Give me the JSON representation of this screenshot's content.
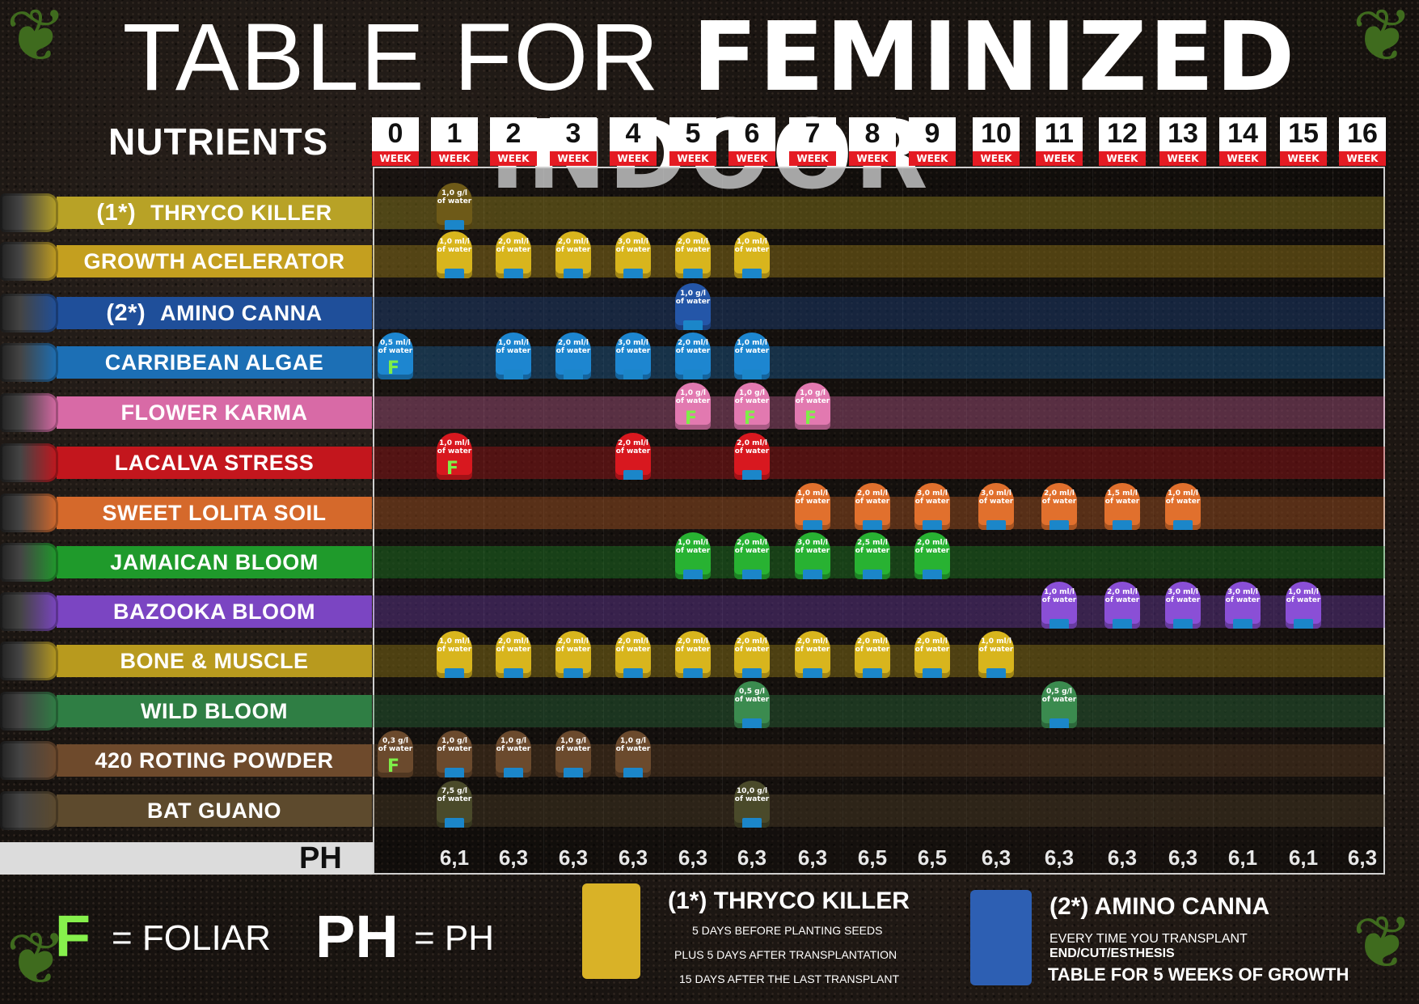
{
  "title": {
    "part1": "TABLE FOR",
    "part2": "FEMINIZED INDOOR"
  },
  "nutrients_heading": "NUTRIENTS",
  "week_label": "WEEK",
  "weeks": [
    "0",
    "1",
    "2",
    "3",
    "4",
    "5",
    "6",
    "7",
    "8",
    "9",
    "10",
    "11",
    "12",
    "13",
    "14",
    "15",
    "16"
  ],
  "rows": [
    {
      "prefix": "(1*)",
      "name": "THRYCO KILLER",
      "color": "#b8a226",
      "doses": [
        {
          "w": 1,
          "t": "1,0 g/l of water",
          "c": "#6e5a18",
          "f": false
        }
      ]
    },
    {
      "prefix": "",
      "name": "GROWTH ACELERATOR",
      "color": "#c49f1f",
      "doses": [
        {
          "w": 1,
          "t": "1,0 ml/l of water",
          "c": "#d8b51d",
          "f": false
        },
        {
          "w": 2,
          "t": "2,0 ml/l of water",
          "c": "#d8b51d",
          "f": false
        },
        {
          "w": 3,
          "t": "2,0 ml/l of water",
          "c": "#d8b51d",
          "f": false
        },
        {
          "w": 4,
          "t": "3,0 ml/l of water",
          "c": "#d8b51d",
          "f": false
        },
        {
          "w": 5,
          "t": "2,0 ml/l of water",
          "c": "#d8b51d",
          "f": false
        },
        {
          "w": 6,
          "t": "1,0 ml/l of water",
          "c": "#d8b51d",
          "f": false
        }
      ]
    },
    {
      "prefix": "(2*)",
      "name": "AMINO CANNA",
      "color": "#1f4f9a",
      "doses": [
        {
          "w": 5,
          "t": "1,0 g/l of water",
          "c": "#2456a8",
          "f": false
        }
      ]
    },
    {
      "prefix": "",
      "name": "CARRIBEAN ALGAE",
      "color": "#1c6fb5",
      "doses": [
        {
          "w": 0,
          "t": "0,5 ml/l of water",
          "c": "#1d86d0",
          "f": true
        },
        {
          "w": 2,
          "t": "1,0 ml/l of water",
          "c": "#1d86d0",
          "f": false
        },
        {
          "w": 3,
          "t": "2,0 ml/l of water",
          "c": "#1d86d0",
          "f": false
        },
        {
          "w": 4,
          "t": "3,0 ml/l of water",
          "c": "#1d86d0",
          "f": false
        },
        {
          "w": 5,
          "t": "2,0 ml/l of water",
          "c": "#1d86d0",
          "f": false
        },
        {
          "w": 6,
          "t": "1,0 ml/l of water",
          "c": "#1d86d0",
          "f": false
        }
      ]
    },
    {
      "prefix": "",
      "name": "FLOWER KARMA",
      "color": "#d86aa6",
      "doses": [
        {
          "w": 5,
          "t": "1,0 g/l of water",
          "c": "#e279b0",
          "f": true
        },
        {
          "w": 6,
          "t": "1,0 g/l of water",
          "c": "#e279b0",
          "f": true
        },
        {
          "w": 7,
          "t": "1,0 g/l of water",
          "c": "#e279b0",
          "f": true
        }
      ]
    },
    {
      "prefix": "",
      "name": "LACALVA STRESS",
      "color": "#c3161d",
      "doses": [
        {
          "w": 1,
          "t": "1,0 ml/l of water",
          "c": "#d8181f",
          "f": true
        },
        {
          "w": 4,
          "t": "2,0 ml/l of water",
          "c": "#d8181f",
          "f": false
        },
        {
          "w": 6,
          "t": "2,0 ml/l of water",
          "c": "#d8181f",
          "f": false
        }
      ]
    },
    {
      "prefix": "",
      "name": "SWEET LOLITA SOIL",
      "color": "#d5692b",
      "doses": [
        {
          "w": 7,
          "t": "1,0 ml/l of water",
          "c": "#e1702d",
          "f": false
        },
        {
          "w": 8,
          "t": "2,0 ml/l of water",
          "c": "#e1702d",
          "f": false
        },
        {
          "w": 9,
          "t": "3,0 ml/l of water",
          "c": "#e1702d",
          "f": false
        },
        {
          "w": 10,
          "t": "3,0 ml/l of water",
          "c": "#e1702d",
          "f": false
        },
        {
          "w": 11,
          "t": "2,0 ml/l of water",
          "c": "#e1702d",
          "f": false
        },
        {
          "w": 12,
          "t": "1,5 ml/l of water",
          "c": "#e1702d",
          "f": false
        },
        {
          "w": 13,
          "t": "1,0 ml/l of water",
          "c": "#e1702d",
          "f": false
        }
      ]
    },
    {
      "prefix": "",
      "name": "JAMAICAN BLOOM",
      "color": "#1f9a2b",
      "doses": [
        {
          "w": 5,
          "t": "1,0 ml/l of water",
          "c": "#28b232",
          "f": false
        },
        {
          "w": 6,
          "t": "2,0 ml/l of water",
          "c": "#28b232",
          "f": false
        },
        {
          "w": 7,
          "t": "3,0 ml/l of water",
          "c": "#28b232",
          "f": false
        },
        {
          "w": 8,
          "t": "2,5 ml/l of water",
          "c": "#28b232",
          "f": false
        },
        {
          "w": 9,
          "t": "2,0 ml/l of water",
          "c": "#28b232",
          "f": false
        }
      ]
    },
    {
      "prefix": "",
      "name": "BAZOOKA BLOOM",
      "color": "#7b45c2",
      "doses": [
        {
          "w": 11,
          "t": "1,0 ml/l of water",
          "c": "#8a4fd6",
          "f": false
        },
        {
          "w": 12,
          "t": "2,0 ml/l of water",
          "c": "#8a4fd6",
          "f": false
        },
        {
          "w": 13,
          "t": "3,0 ml/l of water",
          "c": "#8a4fd6",
          "f": false
        },
        {
          "w": 14,
          "t": "3,0 ml/l of water",
          "c": "#8a4fd6",
          "f": false
        },
        {
          "w": 15,
          "t": "1,0 ml/l of water",
          "c": "#8a4fd6",
          "f": false
        }
      ]
    },
    {
      "prefix": "",
      "name": "BONE & MUSCLE",
      "color": "#b89a1e",
      "doses": [
        {
          "w": 1,
          "t": "1,0 ml/l of water",
          "c": "#d8b51d",
          "f": false
        },
        {
          "w": 2,
          "t": "2,0 ml/l of water",
          "c": "#d8b51d",
          "f": false
        },
        {
          "w": 3,
          "t": "2,0 ml/l of water",
          "c": "#d8b51d",
          "f": false
        },
        {
          "w": 4,
          "t": "2,0 ml/l of water",
          "c": "#d8b51d",
          "f": false
        },
        {
          "w": 5,
          "t": "2,0 ml/l of water",
          "c": "#d8b51d",
          "f": false
        },
        {
          "w": 6,
          "t": "2,0 ml/l of water",
          "c": "#d8b51d",
          "f": false
        },
        {
          "w": 7,
          "t": "2,0 ml/l of water",
          "c": "#d8b51d",
          "f": false
        },
        {
          "w": 8,
          "t": "2,0 ml/l of water",
          "c": "#d8b51d",
          "f": false
        },
        {
          "w": 9,
          "t": "2,0 ml/l of water",
          "c": "#d8b51d",
          "f": false
        },
        {
          "w": 10,
          "t": "1,0 ml/l of water",
          "c": "#d8b51d",
          "f": false
        }
      ]
    },
    {
      "prefix": "",
      "name": "WILD BLOOM",
      "color": "#2f7e44",
      "doses": [
        {
          "w": 6,
          "t": "0,5 g/l of water",
          "c": "#3b8b4f",
          "f": false
        },
        {
          "w": 11,
          "t": "0,5 g/l of water",
          "c": "#3b8b4f",
          "f": false
        }
      ]
    },
    {
      "prefix": "",
      "name": "420 ROTING POWDER",
      "color": "#6e4a2c",
      "doses": [
        {
          "w": 0,
          "t": "0,3 g/l of water",
          "c": "#6b4a2d",
          "f": true
        },
        {
          "w": 1,
          "t": "1,0 g/l of water",
          "c": "#6b4a2d",
          "f": false
        },
        {
          "w": 2,
          "t": "1,0 g/l of water",
          "c": "#6b4a2d",
          "f": false
        },
        {
          "w": 3,
          "t": "1,0 g/l of water",
          "c": "#6b4a2d",
          "f": false
        },
        {
          "w": 4,
          "t": "1,0 g/l of water",
          "c": "#6b4a2d",
          "f": false
        }
      ]
    },
    {
      "prefix": "",
      "name": "BAT GUANO",
      "color": "#5d4a2d",
      "doses": [
        {
          "w": 1,
          "t": "7,5 g/l of water",
          "c": "#4a4a2a",
          "f": false
        },
        {
          "w": 6,
          "t": "10,0 g/l of water",
          "c": "#4a4a2a",
          "f": false
        }
      ]
    }
  ],
  "ph_label": "PH",
  "ph_values": [
    "",
    "6,1",
    "6,3",
    "6,3",
    "6,3",
    "6,3",
    "6,3",
    "6,3",
    "6,5",
    "6,5",
    "6,3",
    "6,3",
    "6,3",
    "6,3",
    "6,1",
    "6,1",
    "6,3"
  ],
  "legend": {
    "f_symbol": "F",
    "f_text": "= FOLIAR",
    "ph_symbol": "PH",
    "ph_text": "= PH"
  },
  "note1": {
    "title": "(1*) THRYCO KILLER",
    "line1": "5 DAYS BEFORE PLANTING SEEDS",
    "line2": "PLUS 5 DAYS AFTER TRANSPLANTATION",
    "line3": "15 DAYS AFTER THE LAST TRANSPLANT"
  },
  "note2": {
    "title": "(2*) AMINO CANNA",
    "line1": "EVERY TIME YOU TRANSPLANT",
    "line2": "END/CUT/ESTHESIS",
    "line3": "TABLE FOR 5 WEEKS OF GROWTH"
  }
}
